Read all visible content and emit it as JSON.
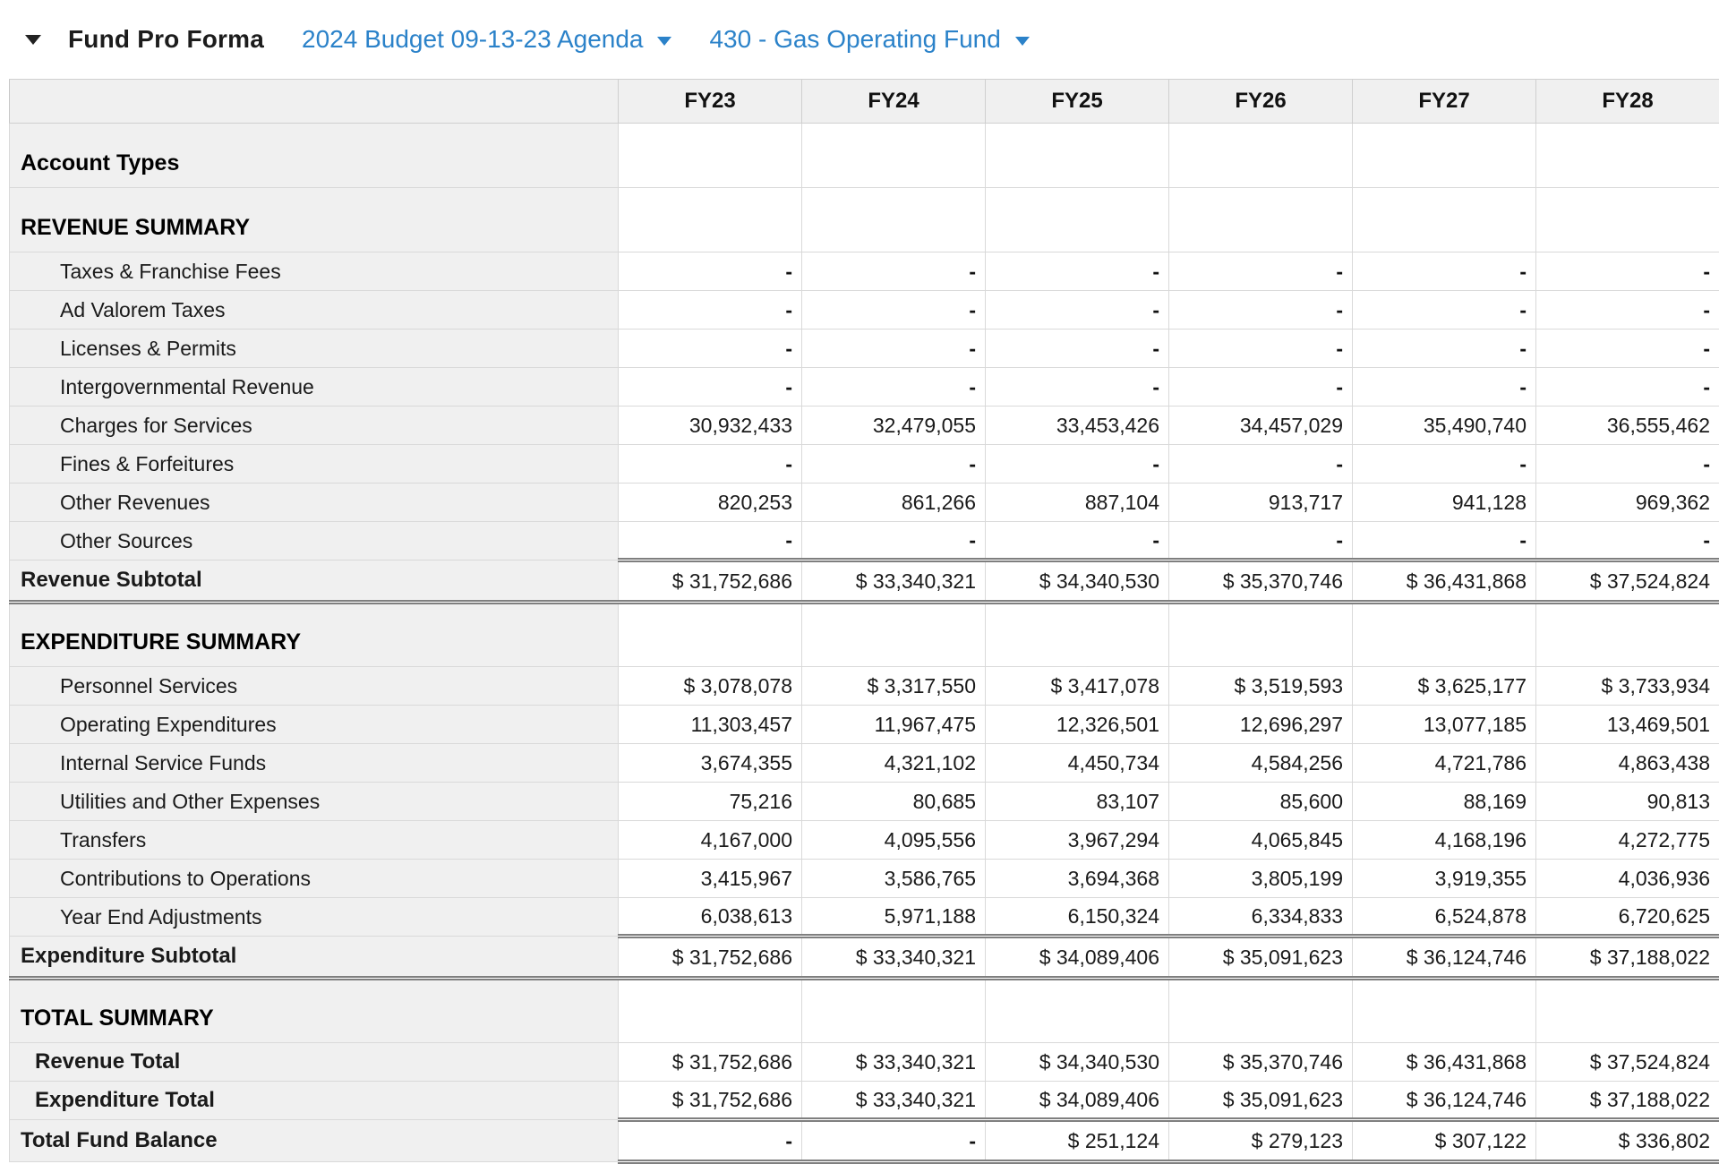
{
  "header": {
    "collapse_caret": "triangle-down",
    "title": "Fund Pro Forma",
    "budget_selector": "2024 Budget 09-13-23 Agenda",
    "fund_selector": "430 - Gas Operating Fund",
    "link_color": "#2b82c9"
  },
  "table": {
    "columns": [
      "FY23",
      "FY24",
      "FY25",
      "FY26",
      "FY27",
      "FY28"
    ],
    "rows": [
      {
        "kind": "heading",
        "label": "Account Types",
        "values": [
          "",
          "",
          "",
          "",
          "",
          ""
        ]
      },
      {
        "kind": "heading",
        "label": "REVENUE SUMMARY",
        "values": [
          "",
          "",
          "",
          "",
          "",
          ""
        ]
      },
      {
        "kind": "detail",
        "label": "Taxes & Franchise Fees",
        "values": [
          "-",
          "-",
          "-",
          "-",
          "-",
          "-"
        ]
      },
      {
        "kind": "detail",
        "label": "Ad Valorem Taxes",
        "values": [
          "-",
          "-",
          "-",
          "-",
          "-",
          "-"
        ]
      },
      {
        "kind": "detail",
        "label": "Licenses & Permits",
        "values": [
          "-",
          "-",
          "-",
          "-",
          "-",
          "-"
        ]
      },
      {
        "kind": "detail",
        "label": "Intergovernmental Revenue",
        "values": [
          "-",
          "-",
          "-",
          "-",
          "-",
          "-"
        ]
      },
      {
        "kind": "detail",
        "label": "Charges for Services",
        "values": [
          "30,932,433",
          "32,479,055",
          "33,453,426",
          "34,457,029",
          "35,490,740",
          "36,555,462"
        ]
      },
      {
        "kind": "detail",
        "label": "Fines & Forfeitures",
        "values": [
          "-",
          "-",
          "-",
          "-",
          "-",
          "-"
        ]
      },
      {
        "kind": "detail",
        "label": "Other Revenues",
        "values": [
          "820,253",
          "861,266",
          "887,104",
          "913,717",
          "941,128",
          "969,362"
        ]
      },
      {
        "kind": "detail",
        "label": "Other Sources",
        "values": [
          "-",
          "-",
          "-",
          "-",
          "-",
          "-"
        ]
      },
      {
        "kind": "subtotal",
        "label": "Revenue Subtotal",
        "values": [
          "$ 31,752,686",
          "$ 33,340,321",
          "$ 34,340,530",
          "$ 35,370,746",
          "$ 36,431,868",
          "$ 37,524,824"
        ]
      },
      {
        "kind": "heading",
        "label": "EXPENDITURE SUMMARY",
        "values": [
          "",
          "",
          "",
          "",
          "",
          ""
        ]
      },
      {
        "kind": "detail",
        "label": "Personnel Services",
        "values": [
          "$ 3,078,078",
          "$ 3,317,550",
          "$ 3,417,078",
          "$ 3,519,593",
          "$ 3,625,177",
          "$ 3,733,934"
        ]
      },
      {
        "kind": "detail",
        "label": "Operating Expenditures",
        "values": [
          "11,303,457",
          "11,967,475",
          "12,326,501",
          "12,696,297",
          "13,077,185",
          "13,469,501"
        ]
      },
      {
        "kind": "detail",
        "label": "Internal Service Funds",
        "values": [
          "3,674,355",
          "4,321,102",
          "4,450,734",
          "4,584,256",
          "4,721,786",
          "4,863,438"
        ]
      },
      {
        "kind": "detail",
        "label": "Utilities and Other Expenses",
        "values": [
          "75,216",
          "80,685",
          "83,107",
          "85,600",
          "88,169",
          "90,813"
        ]
      },
      {
        "kind": "detail",
        "label": "Transfers",
        "values": [
          "4,167,000",
          "4,095,556",
          "3,967,294",
          "4,065,845",
          "4,168,196",
          "4,272,775"
        ]
      },
      {
        "kind": "detail",
        "label": "Contributions to Operations",
        "values": [
          "3,415,967",
          "3,586,765",
          "3,694,368",
          "3,805,199",
          "3,919,355",
          "4,036,936"
        ]
      },
      {
        "kind": "detail",
        "label": "Year End Adjustments",
        "values": [
          "6,038,613",
          "5,971,188",
          "6,150,324",
          "6,334,833",
          "6,524,878",
          "6,720,625"
        ]
      },
      {
        "kind": "subtotal",
        "label": "Expenditure Subtotal",
        "values": [
          "$ 31,752,686",
          "$ 33,340,321",
          "$ 34,089,406",
          "$ 35,091,623",
          "$ 36,124,746",
          "$ 37,188,022"
        ]
      },
      {
        "kind": "heading",
        "label": "TOTAL SUMMARY",
        "values": [
          "",
          "",
          "",
          "",
          "",
          ""
        ]
      },
      {
        "kind": "total",
        "label": "Revenue Total",
        "values": [
          "$ 31,752,686",
          "$ 33,340,321",
          "$ 34,340,530",
          "$ 35,370,746",
          "$ 36,431,868",
          "$ 37,524,824"
        ]
      },
      {
        "kind": "total-end",
        "label": "Expenditure Total",
        "values": [
          "$ 31,752,686",
          "$ 33,340,321",
          "$ 34,089,406",
          "$ 35,091,623",
          "$ 36,124,746",
          "$ 37,188,022"
        ]
      },
      {
        "kind": "grand",
        "label": "Total Fund Balance",
        "values": [
          "-",
          "-",
          "$ 251,124",
          "$ 279,123",
          "$ 307,122",
          "$ 336,802"
        ]
      }
    ]
  }
}
